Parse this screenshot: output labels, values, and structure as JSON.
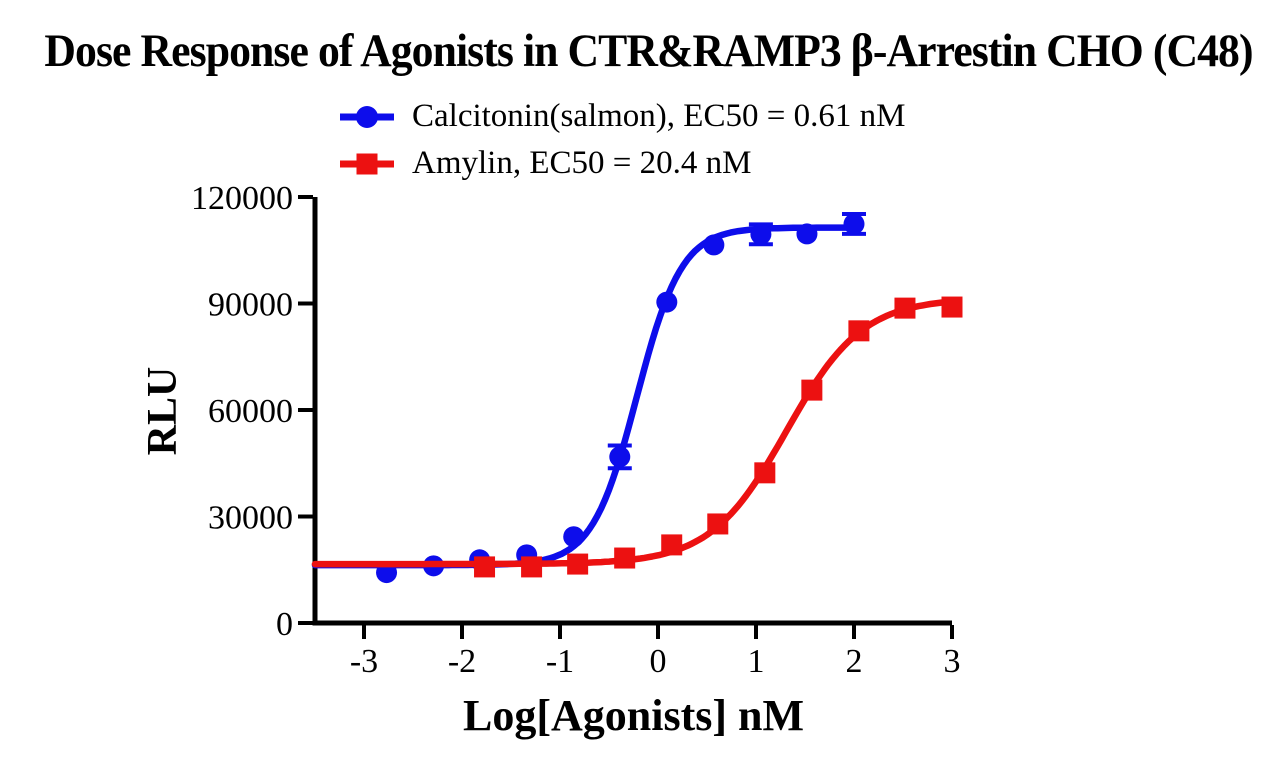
{
  "title": "Dose Response of Agonists in CTR&RAMP3 β-Arrestin CHO (C48)",
  "legend": {
    "items": [
      {
        "label": "Calcitonin(salmon), EC50 = 0.61 nM",
        "marker": "circle",
        "color": "#0d0deb"
      },
      {
        "label": "Amylin, EC50 = 20.4 nM",
        "marker": "square",
        "color": "#ec1111"
      }
    ]
  },
  "chart_data": {
    "type": "scatter",
    "subtype": "dose-response-curves",
    "title": "Dose Response of Agonists in CTR&RAMP3 β-Arrestin CHO (C48)",
    "xlabel": "Log[Agonists] nM",
    "ylabel": "RLU",
    "xlim": [
      -3.5,
      3
    ],
    "ylim": [
      0,
      120000
    ],
    "x_ticks": [
      -3,
      -2,
      -1,
      0,
      1,
      2,
      3
    ],
    "y_ticks": [
      0,
      30000,
      60000,
      90000,
      120000
    ],
    "grid": false,
    "legend_position": "top",
    "series": [
      {
        "id": "calcitonin-salmon",
        "name": "Calcitonin(salmon)",
        "ec50_label": "EC50 = 0.61 nM",
        "ec50_nM": 0.61,
        "color": "#0d0deb",
        "marker": "circle",
        "x": [
          -2.77,
          -2.29,
          -1.82,
          -1.34,
          -0.86,
          -0.39,
          0.09,
          0.57,
          1.05,
          1.52,
          2.0
        ],
        "y": [
          14200,
          16100,
          17800,
          19200,
          24300,
          46800,
          90400,
          106500,
          109500,
          109600,
          112400
        ],
        "y_err": [
          0,
          0,
          0,
          0,
          0,
          3200,
          0,
          0,
          2800,
          0,
          2800
        ],
        "fit": {
          "bottom": 16300,
          "top": 111400,
          "log_ec50": -0.215,
          "hill": 1.9
        }
      },
      {
        "id": "amylin",
        "name": "Amylin",
        "ec50_label": "EC50 = 20.4 nM",
        "ec50_nM": 20.4,
        "color": "#ec1111",
        "marker": "square",
        "x": [
          -1.77,
          -1.29,
          -0.82,
          -0.34,
          0.14,
          0.61,
          1.09,
          1.57,
          2.05,
          2.52,
          3.0
        ],
        "y": [
          15800,
          15800,
          16600,
          18300,
          22000,
          27900,
          42300,
          65600,
          82300,
          88700,
          89000
        ],
        "y_err": [
          0,
          0,
          0,
          0,
          0,
          0,
          0,
          0,
          0,
          0,
          0
        ],
        "fit": {
          "bottom": 16600,
          "top": 91500,
          "log_ec50": 1.31,
          "hill": 1.12
        }
      }
    ]
  }
}
